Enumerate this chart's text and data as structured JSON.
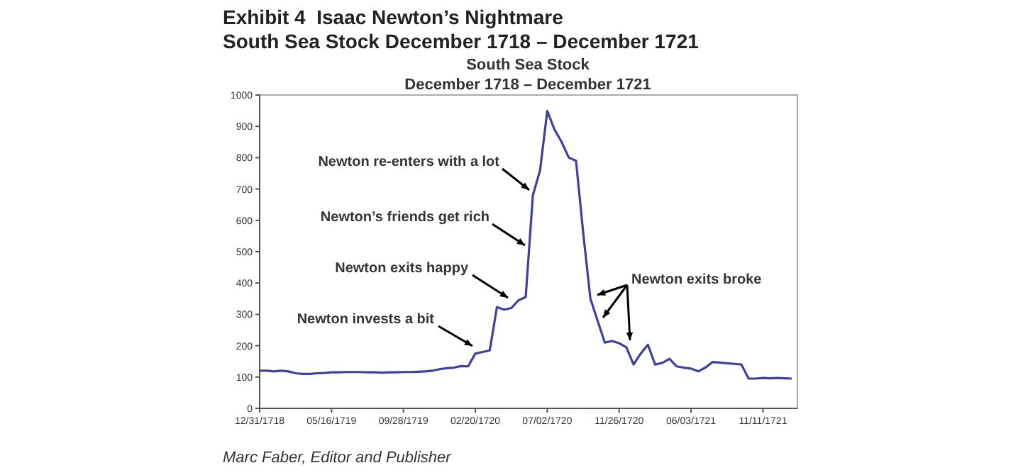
{
  "chart_data": {
    "type": "line",
    "title": "Exhibit 4  Isaac Newton’s Nightmare",
    "subtitle": "South Sea Stock December 1718 – December 1721",
    "categories": [
      "12/31/1718",
      null,
      null,
      null,
      null,
      null,
      null,
      null,
      null,
      null,
      "05/16/1719",
      null,
      null,
      null,
      null,
      null,
      null,
      null,
      null,
      null,
      "09/28/1719",
      null,
      null,
      null,
      null,
      null,
      null,
      null,
      null,
      null,
      "02/20/1720",
      null,
      null,
      null,
      null,
      null,
      null,
      null,
      null,
      null,
      "07/02/1720",
      null,
      null,
      null,
      null,
      null,
      null,
      null,
      null,
      null,
      "11/26/1720",
      null,
      null,
      null,
      null,
      null,
      null,
      null,
      null,
      null,
      "06/03/1721",
      null,
      null,
      null,
      null,
      null,
      null,
      null,
      null,
      null,
      "11/11/1721",
      null,
      null,
      null,
      null
    ],
    "series": [
      {
        "color": "#3f3f9f",
        "values": [
          120,
          120,
          118,
          120,
          118,
          112,
          110,
          110,
          112,
          113,
          115,
          115,
          116,
          116,
          116,
          115,
          115,
          114,
          115,
          115,
          116,
          116,
          117,
          118,
          120,
          125,
          128,
          130,
          135,
          134,
          175,
          180,
          185,
          323,
          315,
          320,
          345,
          355,
          680,
          760,
          949,
          890,
          850,
          800,
          790,
          560,
          350,
          280,
          210,
          215,
          208,
          195,
          140,
          175,
          203,
          140,
          145,
          158,
          134,
          130,
          127,
          118,
          130,
          148,
          146,
          144,
          142,
          140,
          95,
          95,
          97,
          96,
          97,
          96,
          95
        ]
      }
    ],
    "ylim": [
      0,
      1000
    ],
    "yticks": [
      0,
      100,
      200,
      300,
      400,
      500,
      600,
      700,
      800,
      900,
      1000
    ],
    "marker": "none",
    "line_style": "solid",
    "annotations": [
      "South Sea Stock",
      "December 1718 – December 1721",
      "Newton re-enters with a lot",
      "Newton’s friends get rich",
      "Newton exits happy",
      "Newton invests a bit",
      "Newton exits broke",
      "Marc Faber, Editor and Publisher"
    ]
  }
}
